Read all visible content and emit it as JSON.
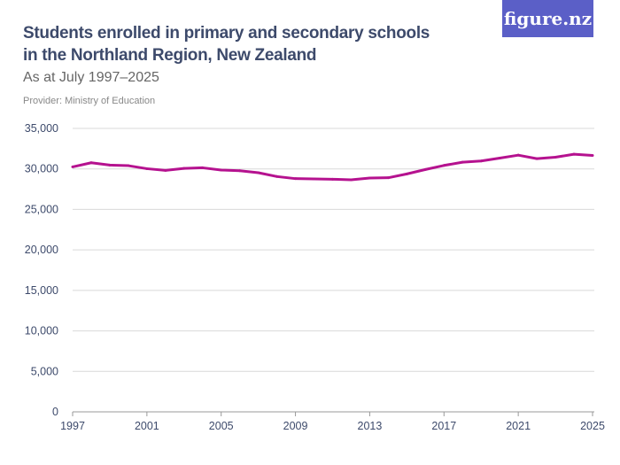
{
  "header": {
    "title": "Students enrolled in primary and secondary schools in the Northland Region, New Zealand",
    "subtitle": "As at July 1997–2025",
    "provider": "Provider: Ministry of Education",
    "logo": "figure.nz"
  },
  "colors": {
    "line": "#b5128f",
    "logo_bg": "#5b5fc7",
    "grid": "#d9d9d9",
    "text": "#3d4a6b"
  },
  "chart_data": {
    "type": "line",
    "title": "Students enrolled in primary and secondary schools in the Northland Region, New Zealand",
    "xlabel": "",
    "ylabel": "",
    "ylim": [
      0,
      35000
    ],
    "xlim": [
      1997,
      2025
    ],
    "grid": true,
    "yticks": [
      0,
      5000,
      10000,
      15000,
      20000,
      25000,
      30000,
      35000
    ],
    "ytick_labels": [
      "0",
      "5,000",
      "10,000",
      "15,000",
      "20,000",
      "25,000",
      "30,000",
      "35,000"
    ],
    "xticks": [
      1997,
      2001,
      2005,
      2009,
      2013,
      2017,
      2021,
      2025
    ],
    "xtick_labels": [
      "1997",
      "2001",
      "2005",
      "2009",
      "2013",
      "2017",
      "2021",
      "2025"
    ],
    "x": [
      1997,
      1998,
      1999,
      2000,
      2001,
      2002,
      2003,
      2004,
      2005,
      2006,
      2007,
      2008,
      2009,
      2010,
      2011,
      2012,
      2013,
      2014,
      2015,
      2016,
      2017,
      2018,
      2019,
      2020,
      2021,
      2022,
      2023,
      2024,
      2025
    ],
    "series": [
      {
        "values": [
          30250,
          30760,
          30470,
          30400,
          30030,
          29820,
          30070,
          30140,
          29860,
          29780,
          29530,
          29060,
          28800,
          28770,
          28730,
          28660,
          28880,
          28910,
          29380,
          29930,
          30430,
          30830,
          30980,
          31340,
          31700,
          31270,
          31450,
          31810,
          31660
        ]
      }
    ]
  }
}
